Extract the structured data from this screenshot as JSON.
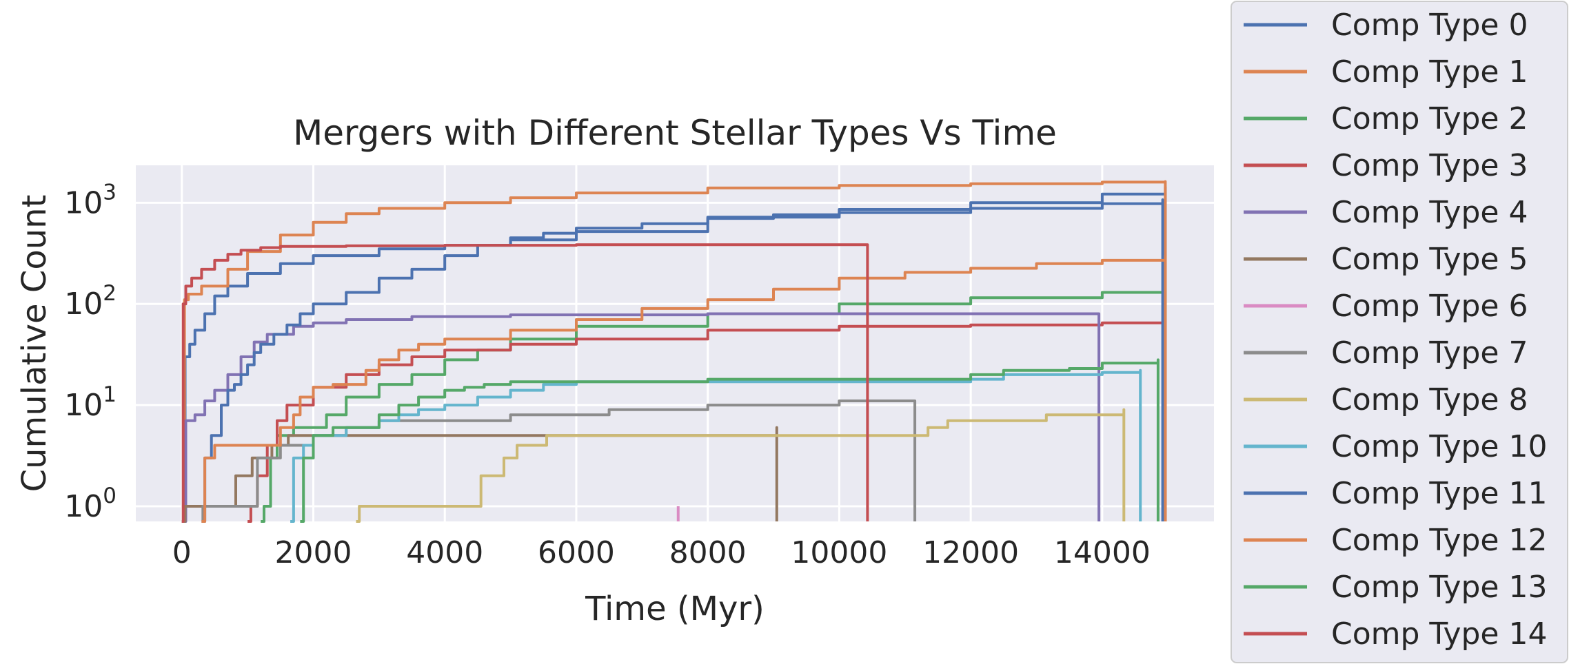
{
  "chart_data": {
    "type": "line",
    "title": "Mergers with Different Stellar Types Vs Time",
    "xlabel": "Time (Myr)",
    "ylabel": "Cumulative Count",
    "xlim": [
      -700,
      15700
    ],
    "ylim_log10": [
      -0.15,
      3.37
    ],
    "y_scale": "log",
    "x_ticks": [
      0,
      2000,
      4000,
      6000,
      8000,
      10000,
      12000,
      14000
    ],
    "y_ticks": [
      {
        "base": "10",
        "exp": "0",
        "value": 1
      },
      {
        "base": "10",
        "exp": "1",
        "value": 10
      },
      {
        "base": "10",
        "exp": "2",
        "value": 100
      },
      {
        "base": "10",
        "exp": "3",
        "value": 1000
      }
    ],
    "grid": true,
    "legend_position": "right",
    "background": "#eaeaf2",
    "series": [
      {
        "name": "Comp Type 0",
        "color": "#4c72b0",
        "end_x": 14960,
        "points": [
          [
            0,
            0.5
          ],
          [
            50,
            30
          ],
          [
            120,
            40
          ],
          [
            200,
            55
          ],
          [
            350,
            80
          ],
          [
            500,
            120
          ],
          [
            700,
            150
          ],
          [
            1000,
            200
          ],
          [
            1500,
            250
          ],
          [
            2000,
            300
          ],
          [
            3000,
            350
          ],
          [
            4000,
            380
          ],
          [
            5000,
            430
          ],
          [
            6000,
            520
          ],
          [
            8000,
            720
          ],
          [
            10000,
            860
          ],
          [
            12000,
            1000
          ],
          [
            14000,
            1220
          ],
          [
            14960,
            1420
          ]
        ]
      },
      {
        "name": "Comp Type 1",
        "color": "#dd8452",
        "end_x": 14960,
        "points": [
          [
            0,
            0.5
          ],
          [
            40,
            110
          ],
          [
            100,
            125
          ],
          [
            300,
            150
          ],
          [
            700,
            220
          ],
          [
            1000,
            330
          ],
          [
            1500,
            480
          ],
          [
            2000,
            640
          ],
          [
            2500,
            780
          ],
          [
            3000,
            880
          ],
          [
            4000,
            1000
          ],
          [
            5000,
            1120
          ],
          [
            6000,
            1250
          ],
          [
            8000,
            1400
          ],
          [
            10000,
            1480
          ],
          [
            12000,
            1540
          ],
          [
            14000,
            1600
          ],
          [
            14960,
            1620
          ]
        ]
      },
      {
        "name": "Comp Type 2",
        "color": "#55a868",
        "end_x": 14960,
        "points": [
          [
            1200,
            0.5
          ],
          [
            1250,
            1
          ],
          [
            1350,
            3
          ],
          [
            1450,
            5
          ],
          [
            1700,
            6
          ],
          [
            2200,
            8
          ],
          [
            2500,
            12
          ],
          [
            3000,
            16
          ],
          [
            3500,
            20
          ],
          [
            4000,
            28
          ],
          [
            4500,
            35
          ],
          [
            5000,
            45
          ],
          [
            6000,
            60
          ],
          [
            8000,
            80
          ],
          [
            10000,
            100
          ],
          [
            12000,
            115
          ],
          [
            14000,
            130
          ],
          [
            14960,
            140
          ]
        ]
      },
      {
        "name": "Comp Type 3",
        "color": "#c44e52",
        "end_x": 14960,
        "points": [
          [
            1000,
            0.5
          ],
          [
            1050,
            1
          ],
          [
            1150,
            2
          ],
          [
            1300,
            4
          ],
          [
            1450,
            7
          ],
          [
            1600,
            10
          ],
          [
            2000,
            15
          ],
          [
            2500,
            20
          ],
          [
            3000,
            25
          ],
          [
            3500,
            30
          ],
          [
            4000,
            35
          ],
          [
            5000,
            40
          ],
          [
            6000,
            45
          ],
          [
            8000,
            55
          ],
          [
            10000,
            60
          ],
          [
            12000,
            62
          ],
          [
            14000,
            65
          ],
          [
            14960,
            68
          ]
        ]
      },
      {
        "name": "Comp Type 4",
        "color": "#8172b3",
        "end_x": 13950,
        "points": [
          [
            0,
            0.5
          ],
          [
            60,
            7
          ],
          [
            200,
            8
          ],
          [
            350,
            11
          ],
          [
            500,
            14
          ],
          [
            700,
            20
          ],
          [
            900,
            30
          ],
          [
            1100,
            42
          ],
          [
            1300,
            50
          ],
          [
            1700,
            60
          ],
          [
            2000,
            65
          ],
          [
            2500,
            70
          ],
          [
            3500,
            75
          ],
          [
            5000,
            78
          ],
          [
            8000,
            80
          ],
          [
            13950,
            80
          ]
        ]
      },
      {
        "name": "Comp Type 5",
        "color": "#937860",
        "end_x": 9050,
        "points": [
          [
            0,
            0.5
          ],
          [
            50,
            1
          ],
          [
            800,
            1
          ],
          [
            820,
            2
          ],
          [
            1050,
            2
          ],
          [
            1070,
            3
          ],
          [
            1350,
            3
          ],
          [
            1370,
            4
          ],
          [
            1600,
            4
          ],
          [
            1620,
            5
          ],
          [
            5800,
            5
          ],
          [
            9000,
            5
          ],
          [
            9050,
            6
          ]
        ]
      },
      {
        "name": "Comp Type 6",
        "color": "#da8bc3",
        "end_x": 7550,
        "points": [
          [
            7550,
            1
          ]
        ]
      },
      {
        "name": "Comp Type 7",
        "color": "#8c8c8c",
        "end_x": 11150,
        "points": [
          [
            300,
            0.5
          ],
          [
            320,
            1
          ],
          [
            1100,
            1
          ],
          [
            1150,
            3
          ],
          [
            1500,
            4
          ],
          [
            2000,
            5
          ],
          [
            2500,
            6
          ],
          [
            3000,
            7
          ],
          [
            4500,
            7
          ],
          [
            5000,
            8
          ],
          [
            6000,
            8
          ],
          [
            6500,
            9
          ],
          [
            7500,
            9
          ],
          [
            8000,
            10
          ],
          [
            9500,
            10
          ],
          [
            10000,
            11
          ],
          [
            11150,
            11
          ]
        ]
      },
      {
        "name": "Comp Type 8",
        "color": "#ccb974",
        "end_x": 14330,
        "points": [
          [
            2650,
            0.5
          ],
          [
            2700,
            1
          ],
          [
            4500,
            1
          ],
          [
            4550,
            2
          ],
          [
            4850,
            2
          ],
          [
            4900,
            3
          ],
          [
            5050,
            3
          ],
          [
            5100,
            4
          ],
          [
            5500,
            4
          ],
          [
            5550,
            5
          ],
          [
            11300,
            5
          ],
          [
            11350,
            6
          ],
          [
            11600,
            6
          ],
          [
            11650,
            7
          ],
          [
            13100,
            7
          ],
          [
            13150,
            8
          ],
          [
            14300,
            8
          ],
          [
            14330,
            9
          ]
        ]
      },
      {
        "name": "Comp Type 10",
        "color": "#64b5cd",
        "end_x": 14580,
        "points": [
          [
            1650,
            0.5
          ],
          [
            1700,
            3
          ],
          [
            1850,
            4
          ],
          [
            2000,
            5
          ],
          [
            2500,
            6
          ],
          [
            3000,
            7
          ],
          [
            3300,
            8
          ],
          [
            3600,
            9
          ],
          [
            4000,
            10
          ],
          [
            4500,
            12
          ],
          [
            5000,
            14
          ],
          [
            5500,
            16
          ],
          [
            6000,
            17
          ],
          [
            8000,
            17
          ],
          [
            10000,
            17
          ],
          [
            12000,
            18
          ],
          [
            12500,
            20
          ],
          [
            14000,
            21
          ],
          [
            14580,
            22
          ]
        ]
      },
      {
        "name": "Comp Type 11",
        "color": "#4c72b0",
        "end_x": 14920,
        "points": [
          [
            300,
            0.5
          ],
          [
            350,
            3
          ],
          [
            450,
            5
          ],
          [
            600,
            10
          ],
          [
            700,
            14
          ],
          [
            800,
            16
          ],
          [
            900,
            20
          ],
          [
            1000,
            25
          ],
          [
            1100,
            33
          ],
          [
            1200,
            40
          ],
          [
            1400,
            50
          ],
          [
            1600,
            62
          ],
          [
            1800,
            80
          ],
          [
            2000,
            100
          ],
          [
            2500,
            130
          ],
          [
            3000,
            180
          ],
          [
            3500,
            220
          ],
          [
            4000,
            300
          ],
          [
            4500,
            380
          ],
          [
            5000,
            450
          ],
          [
            5500,
            500
          ],
          [
            6000,
            560
          ],
          [
            7000,
            620
          ],
          [
            8000,
            700
          ],
          [
            9000,
            760
          ],
          [
            10000,
            800
          ],
          [
            12000,
            880
          ],
          [
            14000,
            980
          ],
          [
            14920,
            1070
          ]
        ]
      },
      {
        "name": "Comp Type 12",
        "color": "#dd8452",
        "end_x": 14960,
        "points": [
          [
            300,
            0.5
          ],
          [
            350,
            3
          ],
          [
            500,
            4
          ],
          [
            700,
            4
          ],
          [
            1300,
            4
          ],
          [
            1500,
            6
          ],
          [
            1700,
            8
          ],
          [
            1800,
            12
          ],
          [
            2000,
            15
          ],
          [
            2300,
            16
          ],
          [
            2800,
            22
          ],
          [
            3000,
            28
          ],
          [
            3300,
            35
          ],
          [
            3600,
            40
          ],
          [
            4000,
            45
          ],
          [
            5000,
            55
          ],
          [
            6000,
            70
          ],
          [
            7000,
            90
          ],
          [
            8000,
            110
          ],
          [
            9000,
            140
          ],
          [
            10000,
            180
          ],
          [
            11000,
            205
          ],
          [
            12000,
            225
          ],
          [
            13000,
            250
          ],
          [
            14000,
            270
          ],
          [
            14960,
            300
          ]
        ]
      },
      {
        "name": "Comp Type 13",
        "color": "#55a868",
        "end_x": 14850,
        "points": [
          [
            1800,
            0.5
          ],
          [
            1850,
            3
          ],
          [
            2000,
            5
          ],
          [
            2300,
            6
          ],
          [
            2700,
            6
          ],
          [
            3000,
            8
          ],
          [
            3300,
            10
          ],
          [
            3600,
            12
          ],
          [
            4000,
            14
          ],
          [
            4300,
            15
          ],
          [
            4600,
            16
          ],
          [
            5000,
            17
          ],
          [
            5800,
            17
          ],
          [
            8000,
            18
          ],
          [
            10000,
            18
          ],
          [
            12000,
            20
          ],
          [
            12500,
            22
          ],
          [
            13500,
            23
          ],
          [
            14000,
            26
          ],
          [
            14850,
            28
          ]
        ]
      },
      {
        "name": "Comp Type 14",
        "color": "#c44e52",
        "end_x": 10430,
        "points": [
          [
            0,
            0.5
          ],
          [
            20,
            100
          ],
          [
            60,
            150
          ],
          [
            150,
            180
          ],
          [
            300,
            220
          ],
          [
            500,
            270
          ],
          [
            700,
            310
          ],
          [
            900,
            340
          ],
          [
            1200,
            360
          ],
          [
            1500,
            370
          ],
          [
            2500,
            375
          ],
          [
            4000,
            380
          ],
          [
            6000,
            385
          ],
          [
            8000,
            385
          ],
          [
            10430,
            385
          ]
        ]
      }
    ]
  }
}
